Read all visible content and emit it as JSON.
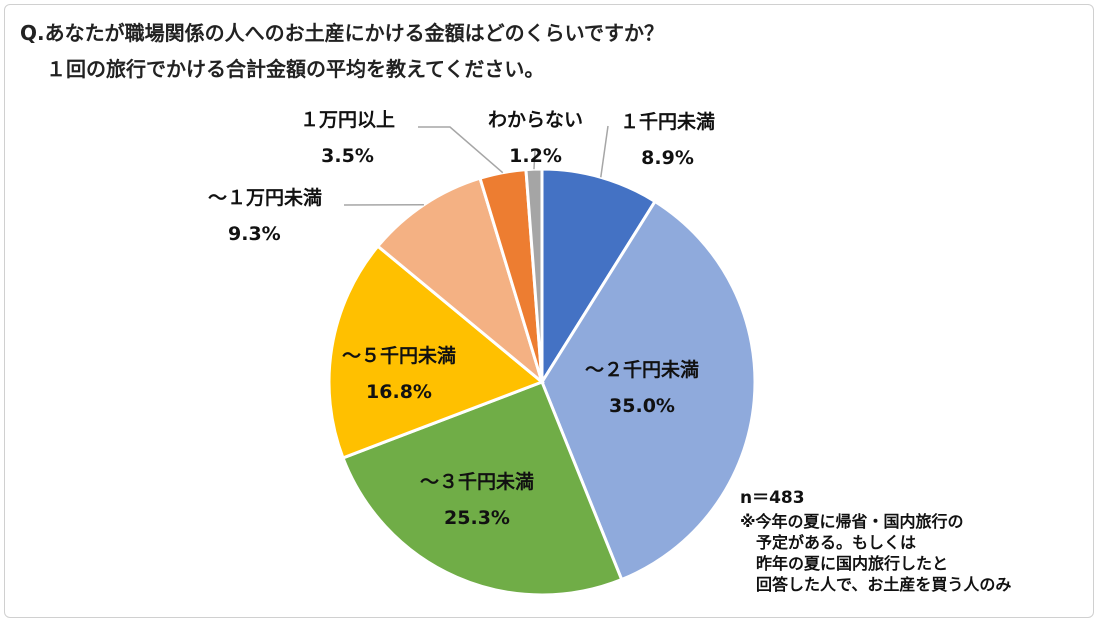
{
  "chart_data": {
    "type": "pie",
    "title": "Q.あなたが職場関係の人へのお土産にかける金額はどのくらいですか？",
    "subtitle": "１回の旅行でかける合計金額の平均を教えてください。",
    "slices": [
      {
        "label": "１千円未満",
        "value": 8.9,
        "display": "8.9%",
        "color": "#4472C4"
      },
      {
        "label": "～２千円未満",
        "value": 35.0,
        "display": "35.0%",
        "color": "#8FAADC"
      },
      {
        "label": "～３千円未満",
        "value": 25.3,
        "display": "25.3%",
        "color": "#70AD47"
      },
      {
        "label": "～５千円未満",
        "value": 16.8,
        "display": "16.8%",
        "color": "#FFC000"
      },
      {
        "label": "～１万円未満",
        "value": 9.3,
        "display": "9.3%",
        "color": "#F4B183"
      },
      {
        "label": "１万円以上",
        "value": 3.5,
        "display": "3.5%",
        "color": "#ED7D31"
      },
      {
        "label": "わからない",
        "value": 1.2,
        "display": "1.2%",
        "color": "#A5A5A5"
      }
    ],
    "sample_size": "n＝483",
    "note_lines": [
      "※今年の夏に帰省・国内旅行の",
      "　予定がある。もしくは",
      "　昨年の夏に国内旅行したと",
      "　回答した人で、お土産を買う人のみ"
    ]
  }
}
